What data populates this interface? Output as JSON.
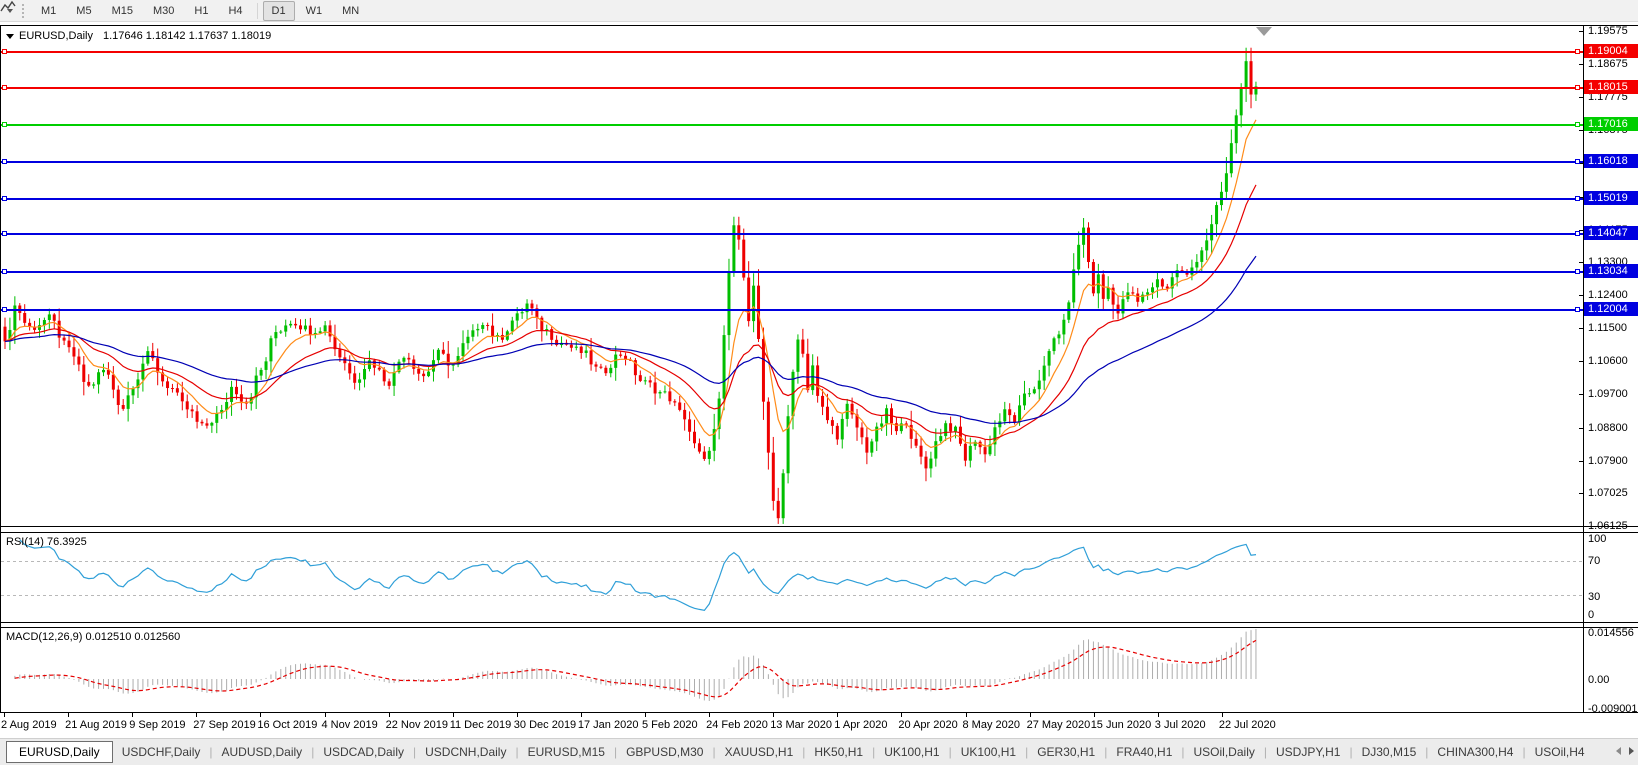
{
  "toolbar": {
    "chart_type_icon": "line-chart-icon",
    "timeframes": [
      "M1",
      "M5",
      "M15",
      "M30",
      "H1",
      "H4",
      "D1",
      "W1",
      "MN"
    ],
    "active_timeframe": "D1"
  },
  "chart": {
    "title_symbol": "EURUSD,Daily",
    "title_ohlc": "1.17646 1.18142 1.17637 1.18019"
  },
  "indicators": {
    "rsi": {
      "label": "RSI(14) 76.3925",
      "period": 14,
      "value": 76.3925,
      "axis_labels": [
        "100",
        "70",
        "30",
        "0"
      ],
      "levels": [
        70,
        30
      ]
    },
    "macd": {
      "label": "MACD(12,26,9) 0.012510 0.012560",
      "fast": 12,
      "slow": 26,
      "signal": 9,
      "main_value": 0.01251,
      "signal_value": 0.01256,
      "axis_labels": [
        "0.014556",
        "0.00",
        "-0.009001"
      ],
      "axis_max": 0.014556,
      "axis_min": -0.009001
    }
  },
  "price_axis": {
    "ticks": [
      "1.19575",
      "1.18675",
      "1.17775",
      "1.16875",
      "1.15975",
      "1.15075",
      "1.14175",
      "1.13300",
      "1.12400",
      "1.11500",
      "1.10600",
      "1.09700",
      "1.08800",
      "1.07900",
      "1.07025",
      "1.06125"
    ]
  },
  "hlines": [
    {
      "label": "1.19004",
      "price": 1.19004,
      "color": "#F40000"
    },
    {
      "label": "1.18015",
      "price": 1.18015,
      "color": "#F40000"
    },
    {
      "label": "1.17016",
      "price": 1.17016,
      "color": "#00CE00"
    },
    {
      "label": "1.16018",
      "price": 1.16018,
      "color": "#0000E0"
    },
    {
      "label": "1.15019",
      "price": 1.15019,
      "color": "#0000E0"
    },
    {
      "label": "1.14047",
      "price": 1.14047,
      "color": "#0000E0"
    },
    {
      "label": "1.13034",
      "price": 1.13034,
      "color": "#0000E0"
    },
    {
      "label": "1.12004",
      "price": 1.12004,
      "color": "#0000E0"
    }
  ],
  "chart_data": {
    "type": "candlestick",
    "symbol": "EURUSD",
    "timeframe": "Daily",
    "current_bar": {
      "open": 1.17646,
      "high": 1.18142,
      "low": 1.17637,
      "close": 1.18019
    },
    "ylim": [
      1.0618,
      1.1971
    ],
    "bar_count": 255,
    "x_ticks": [
      "2 Aug 2019",
      "21 Aug 2019",
      "9 Sep 2019",
      "27 Sep 2019",
      "16 Oct 2019",
      "4 Nov 2019",
      "22 Nov 2019",
      "11 Dec 2019",
      "30 Dec 2019",
      "17 Jan 2020",
      "5 Feb 2020",
      "24 Feb 2020",
      "13 Mar 2020",
      "1 Apr 2020",
      "20 Apr 2020",
      "8 May 2020",
      "27 May 2020",
      "15 Jun 2020",
      "3 Jul 2020",
      "22 Jul 2020"
    ],
    "anchors": [
      [
        0,
        1.1103
      ],
      [
        2,
        1.121
      ],
      [
        5,
        1.115
      ],
      [
        9,
        1.1175
      ],
      [
        13,
        1.109
      ],
      [
        17,
        1.099
      ],
      [
        20,
        1.1035
      ],
      [
        24,
        1.0935
      ],
      [
        26,
        1.1
      ],
      [
        29,
        1.1075
      ],
      [
        33,
        1.0995
      ],
      [
        37,
        1.093
      ],
      [
        40,
        1.088
      ],
      [
        44,
        1.092
      ],
      [
        46,
        1.099
      ],
      [
        49,
        1.095
      ],
      [
        52,
        1.1035
      ],
      [
        55,
        1.114
      ],
      [
        58,
        1.117
      ],
      [
        62,
        1.1145
      ],
      [
        65,
        1.1155
      ],
      [
        68,
        1.1075
      ],
      [
        71,
        1.101
      ],
      [
        74,
        1.106
      ],
      [
        78,
        1.1005
      ],
      [
        81,
        1.108
      ],
      [
        85,
        1.102
      ],
      [
        88,
        1.108
      ],
      [
        91,
        1.105
      ],
      [
        94,
        1.112
      ],
      [
        97,
        1.117
      ],
      [
        100,
        1.112
      ],
      [
        104,
        1.118
      ],
      [
        106,
        1.1215
      ],
      [
        109,
        1.115
      ],
      [
        113,
        1.111
      ],
      [
        117,
        1.1085
      ],
      [
        121,
        1.103
      ],
      [
        125,
        1.108
      ],
      [
        130,
        1.1
      ],
      [
        134,
        1.097
      ],
      [
        138,
        1.091
      ],
      [
        140,
        1.083
      ],
      [
        142,
        1.0785
      ],
      [
        144,
        1.087
      ],
      [
        145,
        1.095
      ],
      [
        146,
        1.112
      ],
      [
        147,
        1.13
      ],
      [
        148,
        1.143
      ],
      [
        149,
        1.138
      ],
      [
        150,
        1.13
      ],
      [
        151,
        1.118
      ],
      [
        152,
        1.126
      ],
      [
        153,
        1.112
      ],
      [
        154,
        1.094
      ],
      [
        155,
        1.08
      ],
      [
        156,
        1.068
      ],
      [
        157,
        1.064
      ],
      [
        158,
        1.076
      ],
      [
        159,
        1.09
      ],
      [
        160,
        1.103
      ],
      [
        161,
        1.113
      ],
      [
        162,
        1.108
      ],
      [
        163,
        1.099
      ],
      [
        164,
        1.105
      ],
      [
        165,
        1.096
      ],
      [
        167,
        1.09
      ],
      [
        169,
        1.086
      ],
      [
        171,
        1.0935
      ],
      [
        173,
        1.088
      ],
      [
        175,
        1.082
      ],
      [
        177,
        1.087
      ],
      [
        179,
        1.092
      ],
      [
        181,
        1.0865
      ],
      [
        183,
        1.09
      ],
      [
        185,
        1.082
      ],
      [
        187,
        1.077
      ],
      [
        189,
        1.084
      ],
      [
        191,
        1.089
      ],
      [
        193,
        1.087
      ],
      [
        195,
        1.0795
      ],
      [
        197,
        1.085
      ],
      [
        199,
        1.0805
      ],
      [
        201,
        1.088
      ],
      [
        203,
        1.092
      ],
      [
        205,
        1.09
      ],
      [
        207,
        1.096
      ],
      [
        209,
        1.099
      ],
      [
        211,
        1.104
      ],
      [
        213,
        1.112
      ],
      [
        215,
        1.116
      ],
      [
        217,
        1.13
      ],
      [
        218,
        1.138
      ],
      [
        219,
        1.142
      ],
      [
        220,
        1.133
      ],
      [
        221,
        1.125
      ],
      [
        222,
        1.129
      ],
      [
        223,
        1.123
      ],
      [
        224,
        1.126
      ],
      [
        226,
        1.119
      ],
      [
        228,
        1.125
      ],
      [
        230,
        1.122
      ],
      [
        232,
        1.125
      ],
      [
        234,
        1.128
      ],
      [
        236,
        1.126
      ],
      [
        238,
        1.131
      ],
      [
        240,
        1.129
      ],
      [
        242,
        1.134
      ],
      [
        244,
        1.139
      ],
      [
        245,
        1.143
      ],
      [
        246,
        1.148
      ],
      [
        247,
        1.152
      ],
      [
        248,
        1.157
      ],
      [
        249,
        1.165
      ],
      [
        250,
        1.173
      ],
      [
        251,
        1.18
      ],
      [
        252,
        1.188
      ],
      [
        253,
        1.178
      ],
      [
        254,
        1.1802
      ]
    ],
    "ma_lines": [
      {
        "name": "fast-ma",
        "period": 8,
        "color": "#FF8C1A"
      },
      {
        "name": "mid-ma",
        "period": 21,
        "color": "#E60000"
      },
      {
        "name": "slow-ma",
        "period": 50,
        "color": "#0000B4"
      }
    ],
    "colors": {
      "bull": "#00BE00",
      "bear": "#EE0000",
      "rsi_line": "#2F9FD8",
      "macd_hist": "#ADADAD",
      "macd_signal": "#E60000"
    }
  },
  "tabs": {
    "items": [
      "EURUSD,Daily",
      "USDCHF,Daily",
      "AUDUSD,Daily",
      "USDCAD,Daily",
      "USDCNH,Daily",
      "EURUSD,M15",
      "GBPUSD,M30",
      "XAUUSD,H1",
      "HK50,H1",
      "UK100,H1",
      "UK100,H1",
      "GER30,H1",
      "FRA40,H1",
      "USOil,Daily",
      "USDJPY,H1",
      "DJ30,M15",
      "CHINA300,H4",
      "USOil,H4"
    ],
    "active_index": 0
  }
}
